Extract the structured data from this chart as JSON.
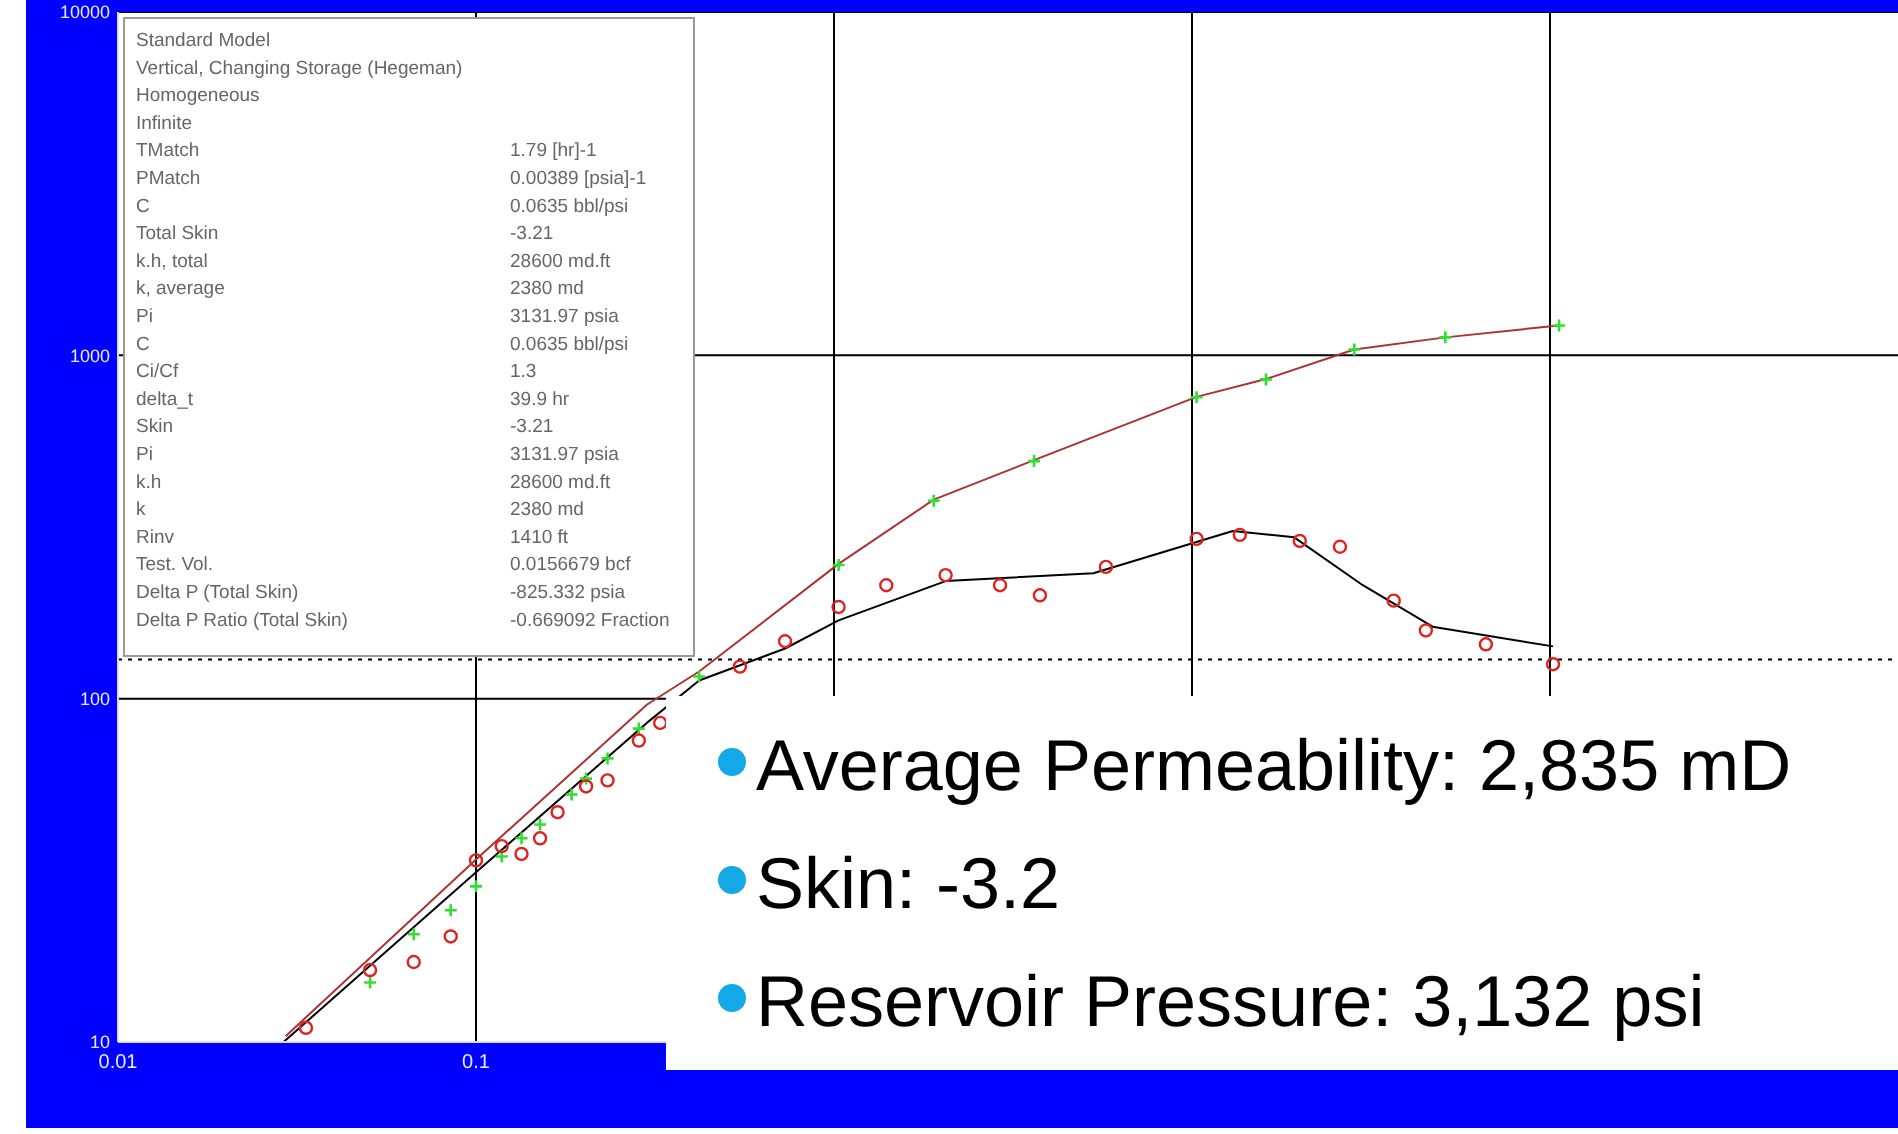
{
  "chart_data": {
    "type": "scatter",
    "log": "xy",
    "grid": true,
    "xlim": [
      0.01,
      1000
    ],
    "xticks": [
      0.01,
      0.1,
      {
        "value": 1,
        "label": null
      },
      {
        "value": 10,
        "label": null
      },
      {
        "value": 100,
        "label": null
      }
    ],
    "ylim": [
      10,
      10000
    ],
    "yticks": [
      10,
      100,
      1000,
      10000
    ],
    "series": [
      {
        "type": "line",
        "color": "#000000",
        "marker": "none",
        "x": [
          0.029,
          0.1,
          0.3,
          0.42,
          0.73,
          1.03,
          2.05,
          5.3,
          13,
          19.3,
          30,
          47,
          102
        ],
        "values": [
          10,
          31.2,
          85,
          113,
          140,
          169,
          220,
          232,
          308,
          295,
          214,
          162,
          142
        ]
      },
      {
        "type": "line",
        "color": "#aa3333",
        "marker": "none",
        "x": [
          0.0294,
          0.1,
          0.3,
          0.42,
          1.03,
          1.9,
          3.62,
          10.3,
          16.1,
          28.4,
          51,
          106
        ],
        "values": [
          10.4,
          34,
          96,
          120,
          247,
          380,
          495,
          757,
          853,
          1040,
          1128,
          1222
        ]
      },
      {
        "color": "#33dd33",
        "marker": "cross",
        "x": [
          0.0506,
          0.067,
          0.085,
          0.1,
          0.118,
          0.134,
          0.151,
          0.185,
          0.203,
          0.233,
          0.285,
          0.42,
          1.03,
          1.9,
          3.62,
          10.3,
          16.1,
          28.4,
          51,
          106
        ],
        "values": [
          14.9,
          20.6,
          24.2,
          28.4,
          34.7,
          39.2,
          43,
          52.6,
          58.5,
          67,
          81.8,
          116,
          245,
          377,
          492,
          755,
          851,
          1040,
          1128,
          1222
        ]
      },
      {
        "color": "#dd2222",
        "marker": "circle",
        "x": [
          0.0335,
          0.0506,
          0.067,
          0.085,
          0.1,
          0.118,
          0.134,
          0.151,
          0.169,
          0.203,
          0.233,
          0.285,
          0.327,
          0.546,
          0.73,
          1.03,
          1.4,
          2.05,
          2.91,
          3.76,
          5.75,
          10.3,
          13.6,
          20,
          25.9,
          36.6,
          45,
          66.2,
          102
        ],
        "values": [
          11,
          16.2,
          17.1,
          20.3,
          33.8,
          37.2,
          35.3,
          39.2,
          46.7,
          55.5,
          57.8,
          75.5,
          85,
          124,
          147,
          185,
          214,
          229,
          214,
          200,
          242,
          292,
          300,
          288,
          277,
          193,
          158,
          144,
          126
        ]
      }
    ],
    "ref_lines": [
      {
        "axis": "y",
        "value": 130,
        "line_style": "dotted",
        "color": "#000000"
      }
    ],
    "annotations": [
      "Standard Model",
      "Vertical, Changing Storage (Hegeman)",
      "Homogeneous",
      "Infinite",
      "TMatch",
      "1.79 [hr]-1",
      "PMatch",
      "0.00389 [psia]-1",
      "C",
      "0.0635 bbl/psi",
      "Total Skin",
      "-3.21",
      "k.h, total",
      "28600 md.ft",
      "k, average",
      "2380 md",
      "Pi",
      "3131.97 psia",
      "C",
      "0.0635 bbl/psi",
      "Ci/Cf",
      "1.3",
      "delta_t",
      "39.9 hr",
      "Skin",
      "-3.21",
      "Pi",
      "3131.97 psia",
      "k.h",
      "28600 md.ft",
      "k",
      "2380 md",
      "Rinv",
      "1410 ft",
      "Test. Vol.",
      "0.0156679 bcf",
      "Delta P (Total Skin)",
      "-825.332 psia",
      "Delta P Ratio (Total Skin)",
      "-0.669092 Fraction",
      "Average Permeability: 2,835 mD",
      "Skin: -3.2",
      "Reservoir Pressure: 3,132 psi"
    ]
  }
}
